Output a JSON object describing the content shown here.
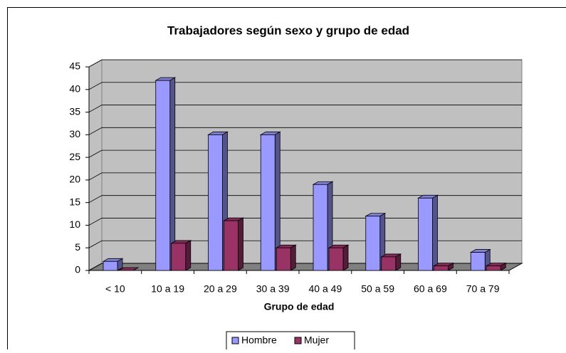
{
  "chart_data": {
    "type": "bar3d",
    "title": "Trabajadores según sexo y grupo de edad",
    "x_label": "Grupo de edad",
    "categories": [
      "< 10",
      "10 a 19",
      "20 a 29",
      "30 a 39",
      "40 a 49",
      "50 a 59",
      "60 a 69",
      "70 a 79"
    ],
    "series": [
      {
        "name": "Hombre",
        "color": "#9999ff",
        "values": [
          2,
          42,
          30,
          30,
          19,
          12,
          16,
          4
        ]
      },
      {
        "name": "Mujer",
        "color": "#993366",
        "values": [
          0,
          6,
          11,
          5,
          5,
          3,
          1,
          1
        ]
      }
    ],
    "ylim": [
      0,
      45
    ],
    "yticks": [
      0,
      5,
      10,
      15,
      20,
      25,
      30,
      35,
      40,
      45
    ],
    "grid": true
  }
}
